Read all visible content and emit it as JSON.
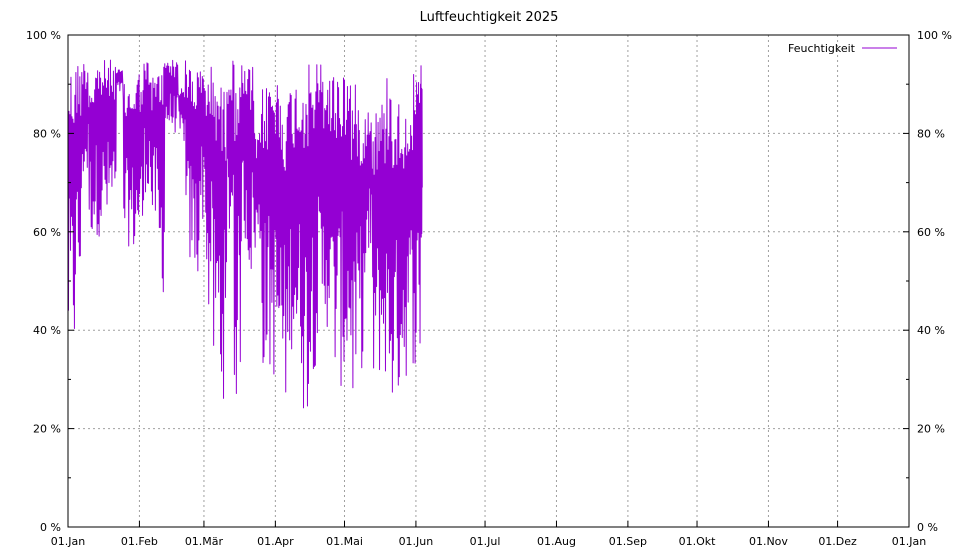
{
  "chart_data": {
    "type": "line",
    "title": "Luftfeuchtigkeit 2025",
    "xlabel": "",
    "ylabel": "",
    "x_tick_labels": [
      "01.Jan",
      "01.Feb",
      "01.Mär",
      "01.Apr",
      "01.Mai",
      "01.Jun",
      "01.Jul",
      "01.Aug",
      "01.Sep",
      "01.Okt",
      "01.Nov",
      "01.Dez",
      "01.Jan"
    ],
    "x_tick_days": [
      0,
      31,
      59,
      90,
      120,
      151,
      181,
      212,
      243,
      273,
      304,
      334,
      365
    ],
    "y_tick_labels": [
      "0 %",
      "20 %",
      "40 %",
      "60 %",
      "80 %",
      "100 %"
    ],
    "y_ticks": [
      0,
      20,
      40,
      60,
      80,
      100
    ],
    "ylim": [
      0,
      100
    ],
    "xlim": [
      "2025-01-01",
      "2026-01-01"
    ],
    "grid": true,
    "legend_position": "top-right",
    "series": [
      {
        "name": "Feuchtigkeit",
        "color": "#9400d3",
        "x": [
          "2025-01-01",
          "2025-01-04",
          "2025-01-07",
          "2025-01-10",
          "2025-01-13",
          "2025-01-16",
          "2025-01-19",
          "2025-01-22",
          "2025-01-25",
          "2025-01-28",
          "2025-01-31",
          "2025-02-03",
          "2025-02-06",
          "2025-02-09",
          "2025-02-12",
          "2025-02-15",
          "2025-02-18",
          "2025-02-21",
          "2025-02-24",
          "2025-02-27",
          "2025-03-02",
          "2025-03-05",
          "2025-03-08",
          "2025-03-11",
          "2025-03-14",
          "2025-03-17",
          "2025-03-20",
          "2025-03-23",
          "2025-03-26",
          "2025-03-29",
          "2025-04-01",
          "2025-04-04",
          "2025-04-07",
          "2025-04-10",
          "2025-04-13",
          "2025-04-16",
          "2025-04-19",
          "2025-04-22",
          "2025-04-25",
          "2025-04-28",
          "2025-05-01",
          "2025-05-04",
          "2025-05-07",
          "2025-05-10",
          "2025-05-13",
          "2025-05-16",
          "2025-05-19",
          "2025-05-22",
          "2025-05-25",
          "2025-05-28",
          "2025-05-31",
          "2025-06-03"
        ],
        "min": [
          34,
          45,
          70,
          59,
          59,
          60,
          62,
          88,
          57,
          55,
          57,
          68,
          60,
          47,
          80,
          80,
          78,
          52,
          50,
          62,
          42,
          30,
          26,
          58,
          25,
          57,
          50,
          55,
          32,
          30,
          28,
          23,
          36,
          30,
          23,
          32,
          35,
          40,
          30,
          28,
          30,
          24,
          32,
          50,
          27,
          30,
          23,
          26,
          30,
          33,
          32,
          54
        ],
        "max": [
          94,
          95,
          95,
          92,
          95,
          95,
          95,
          93,
          90,
          91,
          93,
          95,
          92,
          95,
          96,
          95,
          90,
          95,
          94,
          93,
          94,
          94,
          90,
          95,
          96,
          94,
          94,
          80,
          90,
          93,
          92,
          88,
          90,
          92,
          94,
          94,
          95,
          93,
          93,
          94,
          94,
          90,
          87,
          86,
          86,
          87,
          93,
          87,
          86,
          89,
          92,
          94
        ]
      }
    ]
  }
}
